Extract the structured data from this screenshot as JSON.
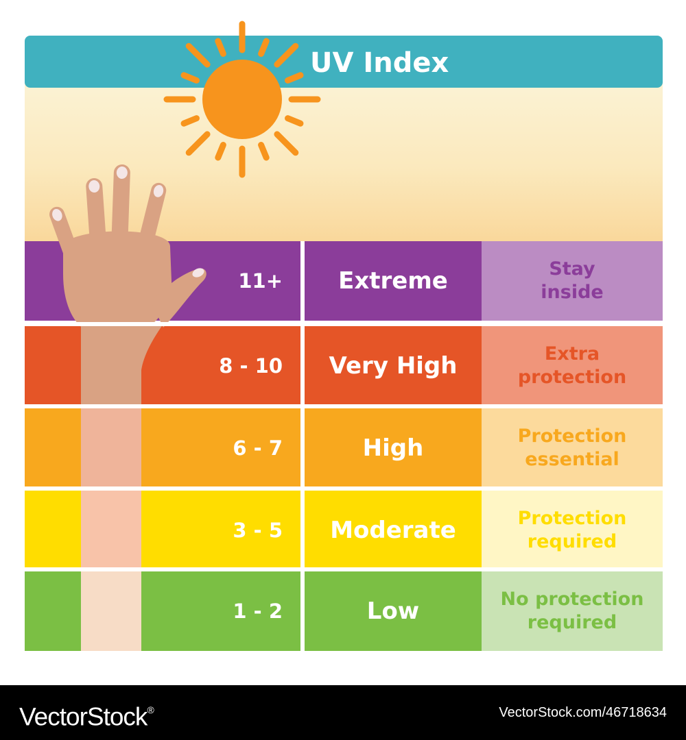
{
  "title": "UV Index",
  "colors": {
    "title_bar": "#40b1bf",
    "sun": "#f7941d",
    "skin": "#d9a283"
  },
  "icons": {
    "sun": "sun-icon",
    "hand": "hand-illustration"
  },
  "levels": [
    {
      "range": "11+",
      "level": "Extreme",
      "advice_lines": [
        "Stay",
        "inside"
      ],
      "color": "#8b3d9a",
      "advice_bg": "#bb8cc3",
      "advice_color": "#8b3d9a"
    },
    {
      "range": "8 - 10",
      "level": "Very High",
      "advice_lines": [
        "Extra",
        "protection"
      ],
      "color": "#e55527",
      "advice_bg": "#f0957a",
      "advice_color": "#e55527"
    },
    {
      "range": "6 - 7",
      "level": "High",
      "advice_lines": [
        "Protection",
        "essential"
      ],
      "color": "#f8a81e",
      "advice_bg": "#fcda9c",
      "advice_color": "#f8a81e"
    },
    {
      "range": "3 - 5",
      "level": "Moderate",
      "advice_lines": [
        "Protection",
        "required"
      ],
      "color": "#ffdd00",
      "advice_bg": "#fff6c5",
      "advice_color": "#ffdd00"
    },
    {
      "range": "1 - 2",
      "level": "Low",
      "advice_lines": [
        "No protection",
        "required"
      ],
      "color": "#7bbf44",
      "advice_bg": "#c9e3b4",
      "advice_color": "#7bbf44"
    }
  ],
  "footer": {
    "brand": "VectorStock",
    "brand_mark": "®",
    "url": "VectorStock.com/46718634"
  }
}
